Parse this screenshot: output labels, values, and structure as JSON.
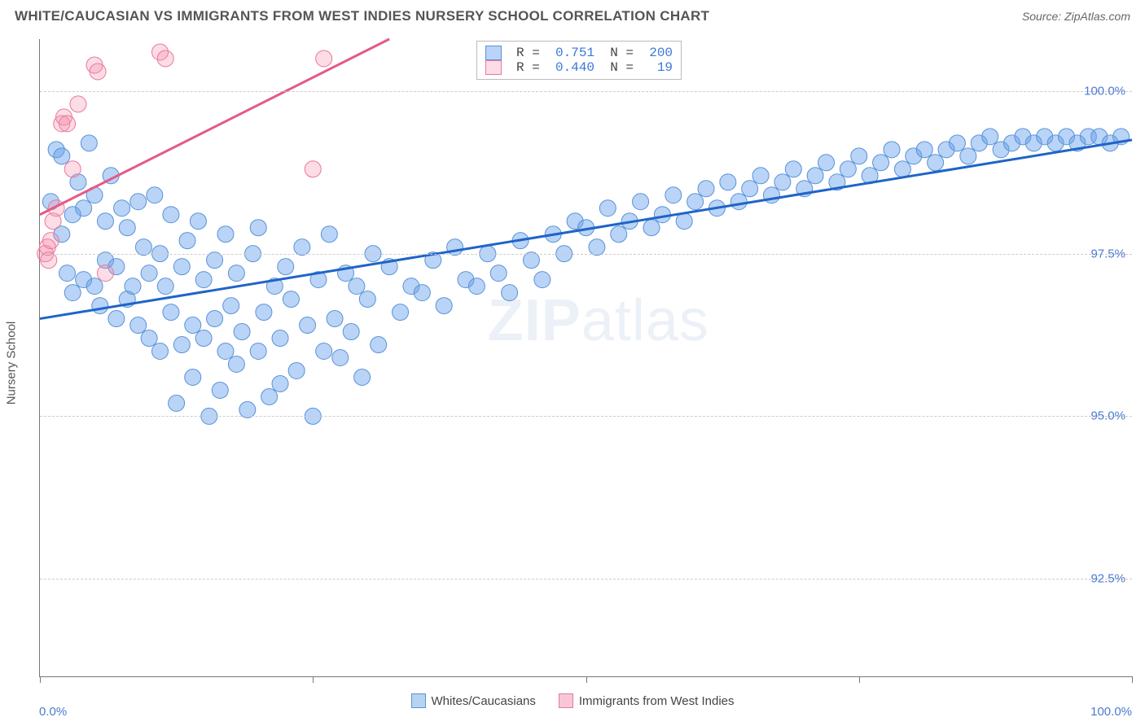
{
  "header": {
    "title": "WHITE/CAUCASIAN VS IMMIGRANTS FROM WEST INDIES NURSERY SCHOOL CORRELATION CHART",
    "source": "Source: ZipAtlas.com"
  },
  "chart": {
    "type": "scatter",
    "ylabel": "Nursery School",
    "xlim": [
      0,
      100
    ],
    "ylim": [
      91.0,
      100.8
    ],
    "xticks": [
      0,
      25,
      50,
      75,
      100
    ],
    "xtick_labels_shown": {
      "start": "0.0%",
      "end": "100.0%"
    },
    "yticks": [
      92.5,
      95.0,
      97.5,
      100.0
    ],
    "ytick_labels": [
      "92.5%",
      "95.0%",
      "97.5%",
      "100.0%"
    ],
    "grid_color": "#cccccc",
    "axis_color": "#777777",
    "background_color": "#ffffff",
    "series": [
      {
        "name": "Whites/Caucasians",
        "color_fill": "rgba(100,160,235,0.45)",
        "color_stroke": "#5a92d8",
        "line_color": "#1f64c8",
        "marker_radius": 10,
        "R": "0.751",
        "N": "200",
        "trend": {
          "x1": 0,
          "y1": 96.5,
          "x2": 100,
          "y2": 99.25
        },
        "points": [
          [
            1,
            98.3
          ],
          [
            1.5,
            99.1
          ],
          [
            2,
            99.0
          ],
          [
            2,
            97.8
          ],
          [
            2.5,
            97.2
          ],
          [
            3,
            98.1
          ],
          [
            3,
            96.9
          ],
          [
            3.5,
            98.6
          ],
          [
            4,
            98.2
          ],
          [
            4,
            97.1
          ],
          [
            4.5,
            99.2
          ],
          [
            5,
            98.4
          ],
          [
            5,
            97.0
          ],
          [
            5.5,
            96.7
          ],
          [
            6,
            98.0
          ],
          [
            6,
            97.4
          ],
          [
            6.5,
            98.7
          ],
          [
            7,
            97.3
          ],
          [
            7,
            96.5
          ],
          [
            7.5,
            98.2
          ],
          [
            8,
            97.9
          ],
          [
            8,
            96.8
          ],
          [
            8.5,
            97.0
          ],
          [
            9,
            98.3
          ],
          [
            9,
            96.4
          ],
          [
            9.5,
            97.6
          ],
          [
            10,
            97.2
          ],
          [
            10,
            96.2
          ],
          [
            10.5,
            98.4
          ],
          [
            11,
            97.5
          ],
          [
            11,
            96.0
          ],
          [
            11.5,
            97.0
          ],
          [
            12,
            98.1
          ],
          [
            12,
            96.6
          ],
          [
            12.5,
            95.2
          ],
          [
            13,
            97.3
          ],
          [
            13,
            96.1
          ],
          [
            13.5,
            97.7
          ],
          [
            14,
            96.4
          ],
          [
            14,
            95.6
          ],
          [
            14.5,
            98.0
          ],
          [
            15,
            97.1
          ],
          [
            15,
            96.2
          ],
          [
            15.5,
            95.0
          ],
          [
            16,
            97.4
          ],
          [
            16,
            96.5
          ],
          [
            16.5,
            95.4
          ],
          [
            17,
            97.8
          ],
          [
            17,
            96.0
          ],
          [
            17.5,
            96.7
          ],
          [
            18,
            95.8
          ],
          [
            18,
            97.2
          ],
          [
            18.5,
            96.3
          ],
          [
            19,
            95.1
          ],
          [
            19.5,
            97.5
          ],
          [
            20,
            96.0
          ],
          [
            20,
            97.9
          ],
          [
            20.5,
            96.6
          ],
          [
            21,
            95.3
          ],
          [
            21.5,
            97.0
          ],
          [
            22,
            96.2
          ],
          [
            22,
            95.5
          ],
          [
            22.5,
            97.3
          ],
          [
            23,
            96.8
          ],
          [
            23.5,
            95.7
          ],
          [
            24,
            97.6
          ],
          [
            24.5,
            96.4
          ],
          [
            25,
            95.0
          ],
          [
            25.5,
            97.1
          ],
          [
            26,
            96.0
          ],
          [
            26.5,
            97.8
          ],
          [
            27,
            96.5
          ],
          [
            27.5,
            95.9
          ],
          [
            28,
            97.2
          ],
          [
            28.5,
            96.3
          ],
          [
            29,
            97.0
          ],
          [
            29.5,
            95.6
          ],
          [
            30,
            96.8
          ],
          [
            30.5,
            97.5
          ],
          [
            31,
            96.1
          ],
          [
            32,
            97.3
          ],
          [
            33,
            96.6
          ],
          [
            34,
            97.0
          ],
          [
            35,
            96.9
          ],
          [
            36,
            97.4
          ],
          [
            37,
            96.7
          ],
          [
            38,
            97.6
          ],
          [
            39,
            97.1
          ],
          [
            40,
            97.0
          ],
          [
            41,
            97.5
          ],
          [
            42,
            97.2
          ],
          [
            43,
            96.9
          ],
          [
            44,
            97.7
          ],
          [
            45,
            97.4
          ],
          [
            46,
            97.1
          ],
          [
            47,
            97.8
          ],
          [
            48,
            97.5
          ],
          [
            49,
            98.0
          ],
          [
            50,
            97.9
          ],
          [
            51,
            97.6
          ],
          [
            52,
            98.2
          ],
          [
            53,
            97.8
          ],
          [
            54,
            98.0
          ],
          [
            55,
            98.3
          ],
          [
            56,
            97.9
          ],
          [
            57,
            98.1
          ],
          [
            58,
            98.4
          ],
          [
            59,
            98.0
          ],
          [
            60,
            98.3
          ],
          [
            61,
            98.5
          ],
          [
            62,
            98.2
          ],
          [
            63,
            98.6
          ],
          [
            64,
            98.3
          ],
          [
            65,
            98.5
          ],
          [
            66,
            98.7
          ],
          [
            67,
            98.4
          ],
          [
            68,
            98.6
          ],
          [
            69,
            98.8
          ],
          [
            70,
            98.5
          ],
          [
            71,
            98.7
          ],
          [
            72,
            98.9
          ],
          [
            73,
            98.6
          ],
          [
            74,
            98.8
          ],
          [
            75,
            99.0
          ],
          [
            76,
            98.7
          ],
          [
            77,
            98.9
          ],
          [
            78,
            99.1
          ],
          [
            79,
            98.8
          ],
          [
            80,
            99.0
          ],
          [
            81,
            99.1
          ],
          [
            82,
            98.9
          ],
          [
            83,
            99.1
          ],
          [
            84,
            99.2
          ],
          [
            85,
            99.0
          ],
          [
            86,
            99.2
          ],
          [
            87,
            99.3
          ],
          [
            88,
            99.1
          ],
          [
            89,
            99.2
          ],
          [
            90,
            99.3
          ],
          [
            91,
            99.2
          ],
          [
            92,
            99.3
          ],
          [
            93,
            99.2
          ],
          [
            94,
            99.3
          ],
          [
            95,
            99.2
          ],
          [
            96,
            99.3
          ],
          [
            97,
            99.3
          ],
          [
            98,
            99.2
          ],
          [
            99,
            99.3
          ]
        ]
      },
      {
        "name": "Immigrants from West Indies",
        "color_fill": "rgba(245,140,170,0.30)",
        "color_stroke": "#e8789c",
        "line_color": "#e45a87",
        "marker_radius": 10,
        "R": "0.440",
        "N": "19",
        "trend": {
          "x1": 0,
          "y1": 98.1,
          "x2": 32,
          "y2": 100.8
        },
        "points": [
          [
            0.5,
            97.5
          ],
          [
            0.7,
            97.6
          ],
          [
            0.8,
            97.4
          ],
          [
            1.0,
            97.7
          ],
          [
            1.2,
            98.0
          ],
          [
            1.5,
            98.2
          ],
          [
            2.0,
            99.5
          ],
          [
            2.2,
            99.6
          ],
          [
            2.5,
            99.5
          ],
          [
            3.0,
            98.8
          ],
          [
            3.5,
            99.8
          ],
          [
            5.0,
            100.4
          ],
          [
            5.3,
            100.3
          ],
          [
            6.0,
            97.2
          ],
          [
            11.0,
            100.6
          ],
          [
            11.5,
            100.5
          ],
          [
            25.0,
            98.8
          ],
          [
            26.0,
            100.5
          ]
        ]
      }
    ],
    "watermark": {
      "bold": "ZIP",
      "light": "atlas"
    },
    "bottom_legend": [
      {
        "label": "Whites/Caucasians",
        "fill": "#b6d3f2",
        "stroke": "#5a92d8"
      },
      {
        "label": "Immigrants from West Indies",
        "fill": "#f8c6d6",
        "stroke": "#e8789c"
      }
    ]
  }
}
